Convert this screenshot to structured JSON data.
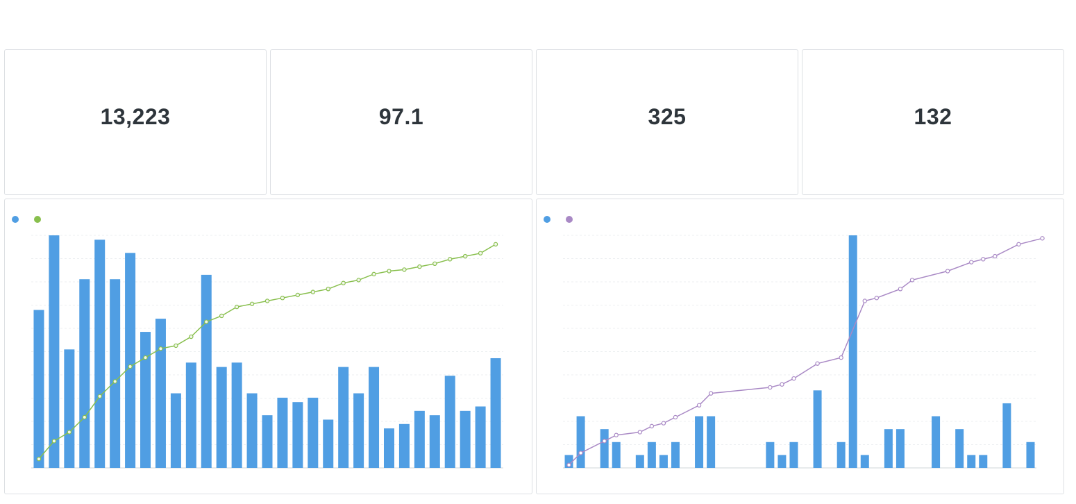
{
  "dashboard": {
    "title": ""
  },
  "scalars": [
    {
      "value": "13,223",
      "label": ""
    },
    {
      "value": "97.1",
      "label": ""
    },
    {
      "value": "325",
      "label": ""
    },
    {
      "value": "132",
      "label": ""
    }
  ],
  "colors": {
    "bar": "#509ee3",
    "line_left": "#88bf4d",
    "line_right": "#a989c5",
    "grid": "#eceff1"
  },
  "chart_data": [
    {
      "type": "bar",
      "title": "",
      "legend": [
        "",
        ""
      ],
      "legend_position": "top-left",
      "grid": true,
      "series": [
        {
          "name": "",
          "kind": "bar",
          "axis": "left",
          "values": [
            72,
            106,
            54,
            86,
            104,
            86,
            98,
            62,
            68,
            34,
            48,
            88,
            46,
            48,
            34,
            24,
            32,
            30,
            32,
            22,
            46,
            34,
            46,
            18,
            20,
            26,
            24,
            42,
            26,
            28,
            50
          ]
        },
        {
          "name": "",
          "kind": "line",
          "axis": "right",
          "values": [
            3,
            9,
            12,
            17,
            24,
            29,
            34,
            37,
            40,
            41,
            44,
            49,
            51,
            54,
            55,
            56,
            57,
            58,
            59,
            60,
            62,
            63,
            65,
            66,
            66.5,
            67.5,
            68.5,
            70,
            71,
            72,
            75
          ]
        }
      ],
      "ylim_left": [
        0,
        106
      ],
      "ylim_right": [
        0,
        78
      ],
      "xlabel": "",
      "ylabel_left": "",
      "ylabel_right": ""
    },
    {
      "type": "bar",
      "title": "",
      "legend": [
        "",
        ""
      ],
      "legend_position": "top-left",
      "grid": true,
      "series": [
        {
          "name": "",
          "kind": "bar",
          "axis": "left",
          "values": [
            1,
            4,
            0,
            3,
            2,
            0,
            1,
            2,
            1,
            2,
            0,
            4,
            4,
            0,
            0,
            0,
            0,
            2,
            1,
            2,
            0,
            6,
            0,
            2,
            18,
            1,
            0,
            3,
            3,
            0,
            0,
            4,
            0,
            3,
            1,
            1,
            0,
            5,
            0,
            2
          ]
        },
        {
          "name": "",
          "kind": "line",
          "axis": "right",
          "points": [
            [
              0,
              1
            ],
            [
              1,
              5
            ],
            [
              3,
              9
            ],
            [
              4,
              11
            ],
            [
              6,
              12
            ],
            [
              7,
              14
            ],
            [
              8,
              15
            ],
            [
              9,
              17
            ],
            [
              11,
              21
            ],
            [
              12,
              25
            ],
            [
              17,
              27
            ],
            [
              18,
              28
            ],
            [
              19,
              30
            ],
            [
              21,
              35
            ],
            [
              23,
              37
            ],
            [
              25,
              56
            ],
            [
              26,
              57
            ],
            [
              28,
              60
            ],
            [
              29,
              63
            ],
            [
              32,
              66
            ],
            [
              34,
              69
            ],
            [
              35,
              70
            ],
            [
              36,
              71
            ],
            [
              38,
              75
            ],
            [
              40,
              77
            ]
          ]
        }
      ],
      "ylim_left": [
        0,
        18
      ],
      "ylim_right": [
        0,
        78
      ],
      "xlabel": "",
      "ylabel_left": "",
      "ylabel_right": ""
    }
  ]
}
